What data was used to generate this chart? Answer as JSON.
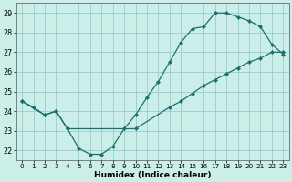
{
  "xlabel": "Humidex (Indice chaleur)",
  "background_color": "#cceee8",
  "grid_color": "#99cccc",
  "line_color": "#1a7070",
  "xlim": [
    -0.5,
    23.5
  ],
  "ylim": [
    21.5,
    29.5
  ],
  "yticks": [
    22,
    23,
    24,
    25,
    26,
    27,
    28,
    29
  ],
  "xticks": [
    0,
    1,
    2,
    3,
    4,
    5,
    6,
    7,
    8,
    9,
    10,
    11,
    12,
    13,
    14,
    15,
    16,
    17,
    18,
    19,
    20,
    21,
    22,
    23
  ],
  "line1_x": [
    0,
    1,
    2,
    3,
    4,
    5,
    6,
    7,
    8,
    9,
    10,
    11,
    12,
    13,
    14,
    15,
    16,
    17,
    18,
    19,
    20,
    21,
    22,
    23
  ],
  "line1_y": [
    24.5,
    24.2,
    23.8,
    24.0,
    23.1,
    22.1,
    21.8,
    21.8,
    22.2,
    23.1,
    23.8,
    24.7,
    25.5,
    26.5,
    27.5,
    28.2,
    28.3,
    29.0,
    29.0,
    28.8,
    28.6,
    28.3,
    27.4,
    26.9
  ],
  "line2_x": [
    0,
    2,
    3,
    4,
    10,
    13,
    14,
    15,
    16,
    17,
    18,
    19,
    20,
    21,
    22,
    23
  ],
  "line2_y": [
    24.5,
    23.8,
    24.0,
    23.1,
    23.1,
    24.2,
    24.5,
    24.9,
    25.3,
    25.6,
    25.9,
    26.2,
    26.5,
    26.7,
    27.0,
    27.0
  ]
}
